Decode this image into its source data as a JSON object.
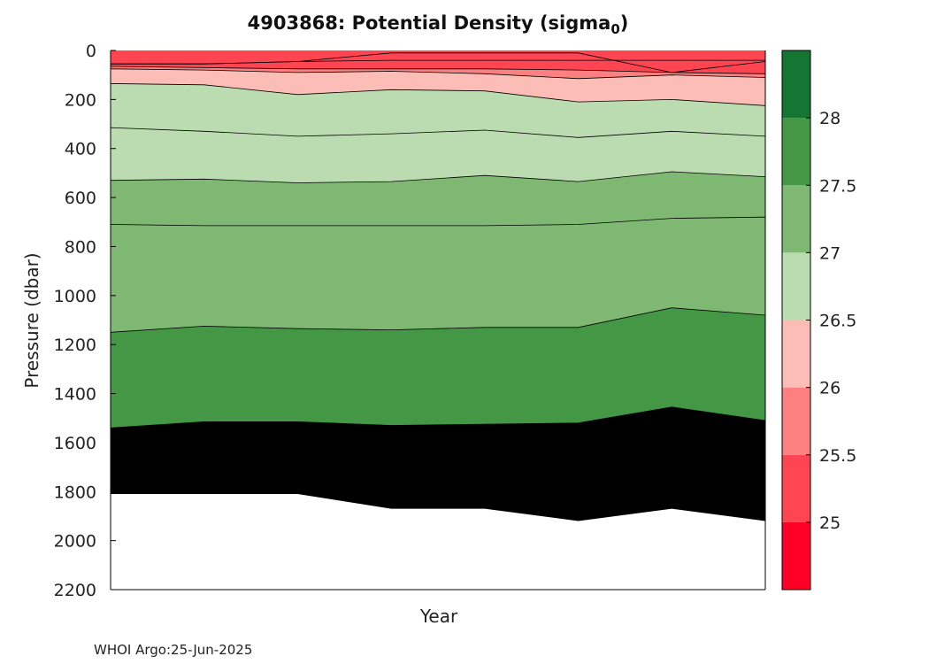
{
  "title": {
    "main": "4903868: Potential Density (sigma",
    "sub": "0",
    "close": ")"
  },
  "footer": "WHOI Argo:25-Jun-2025",
  "colors": {
    "band_0": "#FF0026",
    "band_1": "#FF4552",
    "band_2": "#FC807F",
    "band_3": "#FCBDB7",
    "band_4": "#BBDCB0",
    "band_5": "#7EB872",
    "band_6": "#449845",
    "band_7": "#147632",
    "contour": "#000000",
    "nodata": "#ffffff"
  },
  "chart_data": {
    "type": "heatmap",
    "xlabel": "Year",
    "ylabel": "Pressure (dbar)",
    "ylim": [
      0,
      2200
    ],
    "y_reversed": true,
    "yticks": [
      0,
      200,
      400,
      600,
      800,
      1000,
      1200,
      1400,
      1600,
      1800,
      2000,
      2200
    ],
    "xticks": [],
    "colorbar": {
      "range": [
        24.5,
        28.5
      ],
      "levels": [
        24.5,
        25,
        25.5,
        26,
        26.5,
        27,
        27.5,
        28,
        28.5
      ],
      "ticks": [
        25,
        25.5,
        26,
        26.5,
        27,
        27.5,
        28
      ]
    },
    "profiles_index": [
      0,
      1,
      2,
      3,
      4,
      5,
      6,
      7
    ],
    "max_pressure": [
      1810,
      1810,
      1810,
      1870,
      1870,
      1920,
      1870,
      1920
    ],
    "isopycnals": [
      {
        "level": 25,
        "pressure": [
          55,
          55,
          45,
          40,
          40,
          40,
          40,
          40
        ]
      },
      {
        "level": 25.5,
        "pressure": [
          65,
          70,
          75,
          75,
          75,
          80,
          90,
          95
        ]
      },
      {
        "level": 26,
        "pressure": [
          75,
          80,
          90,
          85,
          95,
          115,
          100,
          110
        ]
      },
      {
        "level": 26.5,
        "pressure": [
          135,
          140,
          180,
          160,
          165,
          210,
          200,
          225
        ]
      },
      {
        "level": 27,
        "pressure": [
          315,
          330,
          350,
          340,
          325,
          355,
          330,
          350
        ]
      },
      {
        "level": 27.5,
        "pressure": [
          530,
          525,
          540,
          535,
          510,
          535,
          495,
          515
        ]
      },
      {
        "level": 28,
        "pressure": [
          710,
          715,
          715,
          715,
          715,
          710,
          685,
          680
        ]
      },
      {
        "level": 28.5,
        "pressure": [
          1150,
          1125,
          1135,
          1140,
          1130,
          1130,
          1050,
          1080
        ]
      },
      {
        "level": 29,
        "pressure": [
          1540,
          1515,
          1515,
          1530,
          1525,
          1520,
          1455,
          1510
        ]
      }
    ],
    "surface_band": {
      "boundary_pressure": [
        55,
        55,
        45,
        10,
        10,
        10,
        90,
        45
      ]
    }
  }
}
